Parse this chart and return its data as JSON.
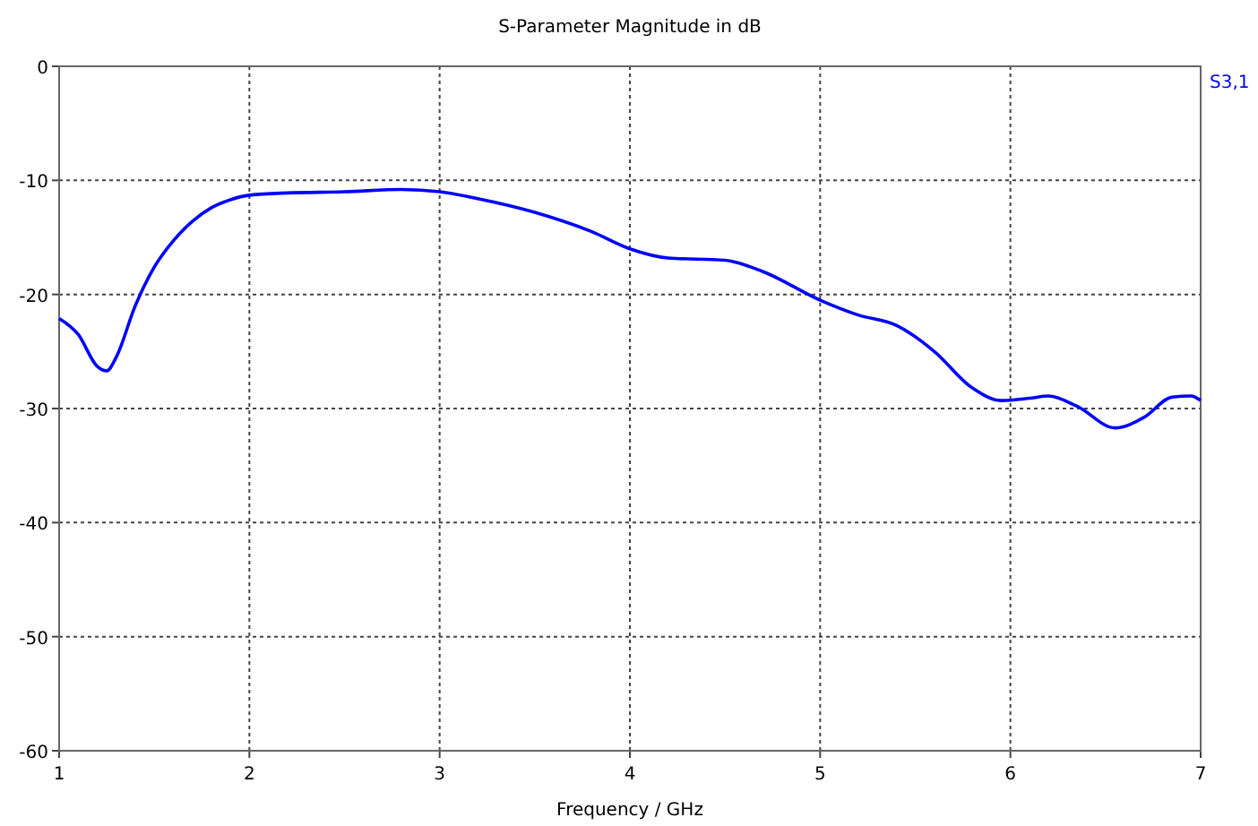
{
  "chart_data": {
    "type": "line",
    "title": "S-Parameter Magnitude in dB",
    "xlabel": "Frequency / GHz",
    "xlim": [
      1,
      7
    ],
    "xticks": [
      1,
      2,
      3,
      4,
      5,
      6,
      7
    ],
    "ylim": [
      -60,
      0
    ],
    "yticks": [
      -60,
      -50,
      -40,
      -30,
      -20,
      -10,
      0
    ],
    "grid": true,
    "line_style": "solid",
    "marker": "none",
    "series": [
      {
        "name": "S3,1",
        "color": "#0000ff",
        "x": [
          1.0,
          1.1,
          1.2,
          1.25,
          1.3,
          1.4,
          1.5,
          1.6,
          1.7,
          1.8,
          1.9,
          2.0,
          2.2,
          2.5,
          2.8,
          3.0,
          3.2,
          3.5,
          3.8,
          4.0,
          4.2,
          4.5,
          4.7,
          5.0,
          5.2,
          5.4,
          5.6,
          5.8,
          5.95,
          6.1,
          6.2,
          6.35,
          6.55,
          6.7,
          6.85,
          6.95,
          7.0
        ],
        "values": [
          -22.1,
          -23.5,
          -26.3,
          -26.7,
          -25.5,
          -21,
          -17.6,
          -15.3,
          -13.6,
          -12.4,
          -11.7,
          -11.3,
          -11.1,
          -11.0,
          -10.8,
          -11.0,
          -11.6,
          -12.8,
          -14.5,
          -16.0,
          -16.8,
          -17.0,
          -18.0,
          -20.5,
          -21.8,
          -22.7,
          -25,
          -28.2,
          -29.3,
          -29.1,
          -28.9,
          -29.8,
          -31.7,
          -30.8,
          -29,
          -28.9,
          -29.3
        ]
      }
    ]
  }
}
